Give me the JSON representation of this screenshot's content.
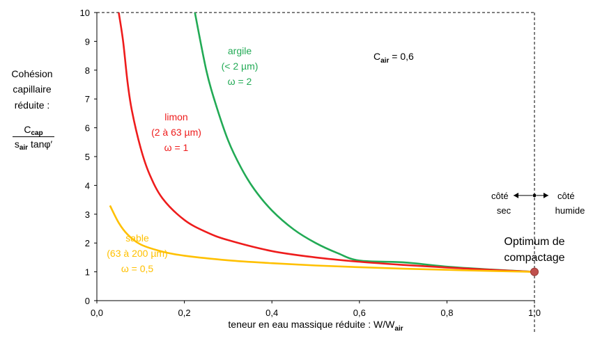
{
  "y_axis_title": {
    "line1": "Cohésion",
    "line2": "capillaire",
    "line3": "réduite :",
    "num_main": "C",
    "num_sub": "cap",
    "den_main": "s",
    "den_sub": "air",
    "den_rest": "tanφ′"
  },
  "x_axis_title": {
    "main": "teneur en eau massique réduite : W/W",
    "sub": "air"
  },
  "annotation_cair": {
    "main": "C",
    "sub": "air",
    "rest": " = 0,6"
  },
  "side_labels": {
    "dry_top": "côté",
    "dry_bottom": "sec",
    "wet_top": "côté",
    "wet_bottom": "humide"
  },
  "optimum_label": {
    "line1": "Optimum de",
    "line2": "compactage"
  },
  "colors": {
    "argile": "#22aa55",
    "limon": "#ee1c1c",
    "sable": "#ffc000",
    "point": "#c0504d"
  },
  "chart_data": {
    "type": "line",
    "xlim": [
      0,
      1.0
    ],
    "ylim": [
      0,
      10
    ],
    "x_ticks": [
      "0,0",
      "0,2",
      "0,4",
      "0,6",
      "0,8",
      "1,0"
    ],
    "y_ticks": [
      "0",
      "1",
      "2",
      "3",
      "4",
      "5",
      "6",
      "7",
      "8",
      "9",
      "10"
    ],
    "series": [
      {
        "name": "argile",
        "label_lines": [
          "argile",
          "(< 2 µm)",
          "ω = 2"
        ],
        "color": "#22aa55",
        "x": [
          0.224,
          0.25,
          0.27,
          0.3,
          0.33,
          0.36,
          0.4,
          0.45,
          0.5,
          0.55,
          0.6,
          0.7,
          0.8,
          0.9,
          1.0
        ],
        "y": [
          10,
          8.0,
          6.9,
          5.56,
          4.6,
          3.86,
          3.13,
          2.47,
          2.0,
          1.65,
          1.39,
          1.33,
          1.18,
          1.08,
          1.0
        ]
      },
      {
        "name": "limon",
        "label_lines": [
          "limon",
          "(2 à 63 µm)",
          "ω = 1"
        ],
        "color": "#ee1c1c",
        "x": [
          0.05,
          0.06,
          0.07,
          0.08,
          0.1,
          0.12,
          0.15,
          0.2,
          0.25,
          0.3,
          0.4,
          0.5,
          0.6,
          0.7,
          0.8,
          0.9,
          1.0
        ],
        "y": [
          10,
          9.0,
          7.6,
          6.6,
          5.3,
          4.4,
          3.55,
          2.8,
          2.38,
          2.1,
          1.72,
          1.5,
          1.35,
          1.24,
          1.15,
          1.07,
          1.0
        ]
      },
      {
        "name": "sable",
        "label_lines": [
          "sable",
          "(63 à 200 µm)",
          "ω = 0,5"
        ],
        "color": "#ffc000",
        "x": [
          0.03,
          0.05,
          0.07,
          0.1,
          0.15,
          0.2,
          0.3,
          0.4,
          0.5,
          0.6,
          0.7,
          0.8,
          0.9,
          1.0
        ],
        "y": [
          3.3,
          2.7,
          2.3,
          1.95,
          1.7,
          1.56,
          1.4,
          1.3,
          1.22,
          1.16,
          1.11,
          1.07,
          1.03,
          1.0
        ]
      }
    ],
    "optimum_point": {
      "x": 1.0,
      "y": 1.0
    },
    "arrow_point": {
      "x": 1.0,
      "y": 3.65
    }
  }
}
